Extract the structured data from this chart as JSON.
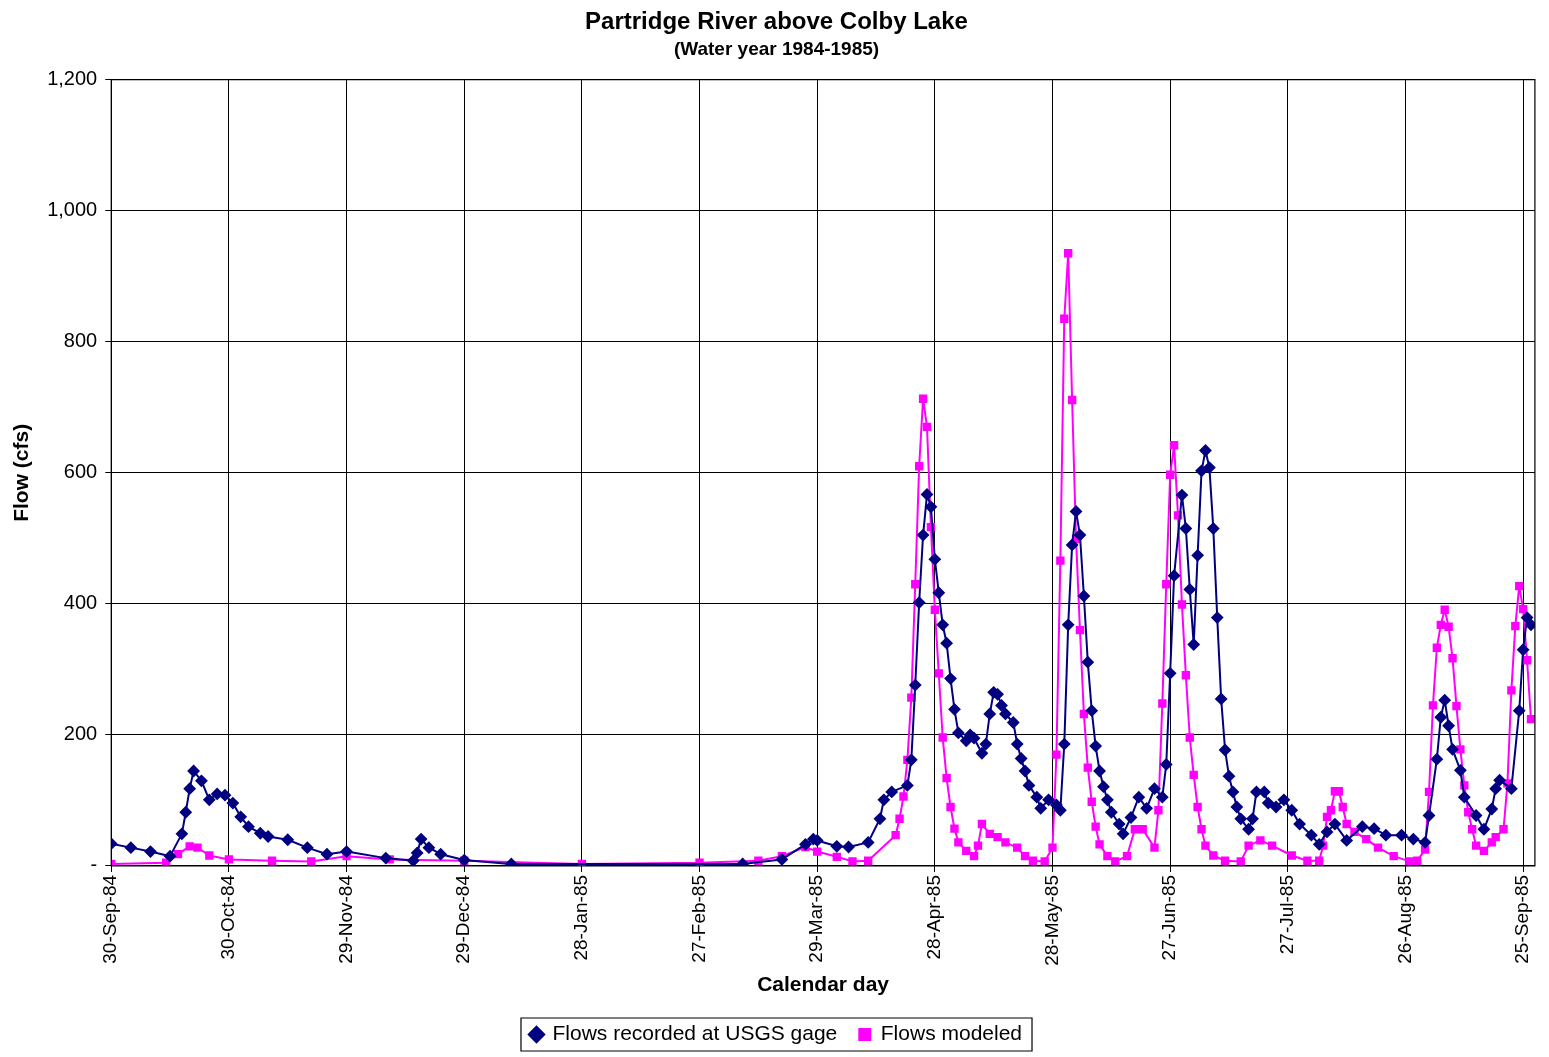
{
  "chart_data": {
    "type": "line",
    "title": "Partridge River above Colby Lake",
    "subtitle": "(Water year 1984-1985)",
    "xlabel": "Calendar day",
    "ylabel": "Flow (cfs)",
    "xlim": [
      "1984-09-30",
      "1985-09-28"
    ],
    "xticks": [
      {
        "value": "1984-09-30",
        "label": "30-Sep-84"
      },
      {
        "value": "1984-10-30",
        "label": "30-Oct-84"
      },
      {
        "value": "1984-11-29",
        "label": "29-Nov-84"
      },
      {
        "value": "1984-12-29",
        "label": "29-Dec-84"
      },
      {
        "value": "1985-01-28",
        "label": "28-Jan-85"
      },
      {
        "value": "1985-02-27",
        "label": "27-Feb-85"
      },
      {
        "value": "1985-03-29",
        "label": "29-Mar-85"
      },
      {
        "value": "1985-04-28",
        "label": "28-Apr-85"
      },
      {
        "value": "1985-05-28",
        "label": "28-May-85"
      },
      {
        "value": "1985-06-27",
        "label": "27-Jun-85"
      },
      {
        "value": "1985-07-27",
        "label": "27-Jul-85"
      },
      {
        "value": "1985-08-26",
        "label": "26-Aug-85"
      },
      {
        "value": "1985-09-25",
        "label": "25-Sep-85"
      }
    ],
    "ylim": [
      0,
      1200
    ],
    "yticks": [
      {
        "value": 0,
        "label": "-"
      },
      200,
      400,
      600,
      800,
      {
        "value": 1000,
        "label": "1,000"
      },
      {
        "value": 1200,
        "label": "1,200"
      }
    ],
    "grid": true,
    "legend": "bottom",
    "line_style": "solid",
    "series": [
      {
        "name": "Flows recorded at USGS gage",
        "color": "#000080",
        "marker": "diamond",
        "x": [
          "1984-09-30",
          "1984-10-05",
          "1984-10-10",
          "1984-10-15",
          "1984-10-18",
          "1984-10-19",
          "1984-10-20",
          "1984-10-21",
          "1984-10-23",
          "1984-10-25",
          "1984-10-27",
          "1984-10-29",
          "1984-10-31",
          "1984-11-02",
          "1984-11-04",
          "1984-11-07",
          "1984-11-09",
          "1984-11-14",
          "1984-11-19",
          "1984-11-24",
          "1984-11-29",
          "1984-12-09",
          "1984-12-16",
          "1984-12-17",
          "1984-12-18",
          "1984-12-20",
          "1984-12-23",
          "1984-12-29",
          "1985-01-10",
          "1985-03-10",
          "1985-03-20",
          "1985-03-26",
          "1985-03-28",
          "1985-03-29",
          "1985-04-03",
          "1985-04-06",
          "1985-04-11",
          "1985-04-14",
          "1985-04-15",
          "1985-04-17",
          "1985-04-21",
          "1985-04-22",
          "1985-04-23",
          "1985-04-24",
          "1985-04-25",
          "1985-04-26",
          "1985-04-27",
          "1985-04-28",
          "1985-04-29",
          "1985-04-30",
          "1985-05-01",
          "1985-05-02",
          "1985-05-03",
          "1985-05-04",
          "1985-05-06",
          "1985-05-07",
          "1985-05-08",
          "1985-05-10",
          "1985-05-11",
          "1985-05-12",
          "1985-05-13",
          "1985-05-14",
          "1985-05-15",
          "1985-05-16",
          "1985-05-18",
          "1985-05-19",
          "1985-05-20",
          "1985-05-21",
          "1985-05-22",
          "1985-05-24",
          "1985-05-25",
          "1985-05-27",
          "1985-05-29",
          "1985-05-30",
          "1985-05-31",
          "1985-06-01",
          "1985-06-02",
          "1985-06-03",
          "1985-06-04",
          "1985-06-05",
          "1985-06-06",
          "1985-06-07",
          "1985-06-08",
          "1985-06-09",
          "1985-06-10",
          "1985-06-11",
          "1985-06-12",
          "1985-06-14",
          "1985-06-15",
          "1985-06-17",
          "1985-06-19",
          "1985-06-21",
          "1985-06-23",
          "1985-06-25",
          "1985-06-26",
          "1985-06-27",
          "1985-06-28",
          "1985-06-30",
          "1985-07-01",
          "1985-07-02",
          "1985-07-03",
          "1985-07-04",
          "1985-07-05",
          "1985-07-06",
          "1985-07-07",
          "1985-07-08",
          "1985-07-09",
          "1985-07-10",
          "1985-07-11",
          "1985-07-12",
          "1985-07-13",
          "1985-07-14",
          "1985-07-15",
          "1985-07-17",
          "1985-07-18",
          "1985-07-19",
          "1985-07-21",
          "1985-07-22",
          "1985-07-24",
          "1985-07-26",
          "1985-07-28",
          "1985-07-30",
          "1985-08-02",
          "1985-08-04",
          "1985-08-06",
          "1985-08-08",
          "1985-08-11",
          "1985-08-15",
          "1985-08-18",
          "1985-08-21",
          "1985-08-25",
          "1985-08-28",
          "1985-08-31",
          "1985-09-01",
          "1985-09-03",
          "1985-09-04",
          "1985-09-05",
          "1985-09-06",
          "1985-09-07",
          "1985-09-09",
          "1985-09-10",
          "1985-09-13",
          "1985-09-15",
          "1985-09-17",
          "1985-09-18",
          "1985-09-19",
          "1985-09-22",
          "1985-09-24",
          "1985-09-25",
          "1985-09-26",
          "1985-09-27"
        ],
        "values": [
          34,
          28,
          22,
          15,
          49,
          82,
          118,
          145,
          130,
          101,
          110,
          108,
          96,
          75,
          60,
          50,
          45,
          40,
          28,
          18,
          22,
          12,
          8,
          20,
          41,
          28,
          18,
          9,
          3,
          3,
          10,
          33,
          41,
          39,
          30,
          29,
          36,
          72,
          101,
          113,
          123,
          162,
          276,
          402,
          505,
          567,
          548,
          468,
          417,
          368,
          340,
          286,
          239,
          203,
          191,
          200,
          195,
          172,
          186,
          232,
          265,
          262,
          245,
          232,
          219,
          186,
          164,
          145,
          123,
          105,
          88,
          101,
          93,
          85,
          186,
          368,
          490,
          541,
          505,
          412,
          311,
          237,
          183,
          145,
          121,
          101,
          82,
          64,
          49,
          74,
          105,
          88,
          118,
          105,
          155,
          294,
          443,
          566,
          515,
          422,
          338,
          474,
          603,
          634,
          608,
          515,
          379,
          255,
          177,
          137,
          113,
          90,
          72,
          56,
          72,
          113,
          113,
          96,
          90,
          101,
          85,
          64,
          47,
          33,
          52,
          64,
          39,
          60,
          57,
          47,
          47,
          41,
          36,
          77,
          163,
          227,
          253,
          214,
          178,
          146,
          105,
          77,
          56,
          87,
          118,
          131,
          118,
          237,
          330,
          379,
          368
        ]
      },
      {
        "name": "Flows modeled",
        "color": "#ff00ff",
        "marker": "square",
        "x": [
          "1984-09-30",
          "1984-10-14",
          "1984-10-17",
          "1984-10-20",
          "1984-10-22",
          "1984-10-25",
          "1984-10-30",
          "1984-11-10",
          "1984-11-20",
          "1984-11-29",
          "1984-12-10",
          "1984-12-29",
          "1985-01-28",
          "1985-02-27",
          "1985-03-14",
          "1985-03-20",
          "1985-03-26",
          "1985-03-29",
          "1985-04-03",
          "1985-04-07",
          "1985-04-11",
          "1985-04-18",
          "1985-04-19",
          "1985-04-20",
          "1985-04-21",
          "1985-04-22",
          "1985-04-23",
          "1985-04-24",
          "1985-04-25",
          "1985-04-26",
          "1985-04-27",
          "1985-04-28",
          "1985-04-29",
          "1985-04-30",
          "1985-05-01",
          "1985-05-02",
          "1985-05-03",
          "1985-05-04",
          "1985-05-06",
          "1985-05-08",
          "1985-05-09",
          "1985-05-10",
          "1985-05-12",
          "1985-05-14",
          "1985-05-16",
          "1985-05-19",
          "1985-05-21",
          "1985-05-23",
          "1985-05-26",
          "1985-05-28",
          "1985-05-29",
          "1985-05-30",
          "1985-05-31",
          "1985-06-01",
          "1985-06-02",
          "1985-06-03",
          "1985-06-04",
          "1985-06-05",
          "1985-06-06",
          "1985-06-07",
          "1985-06-08",
          "1985-06-09",
          "1985-06-11",
          "1985-06-13",
          "1985-06-16",
          "1985-06-18",
          "1985-06-20",
          "1985-06-23",
          "1985-06-24",
          "1985-06-25",
          "1985-06-26",
          "1985-06-27",
          "1985-06-28",
          "1985-06-29",
          "1985-06-30",
          "1985-07-01",
          "1985-07-02",
          "1985-07-03",
          "1985-07-04",
          "1985-07-05",
          "1985-07-06",
          "1985-07-08",
          "1985-07-11",
          "1985-07-15",
          "1985-07-17",
          "1985-07-20",
          "1985-07-23",
          "1985-07-28",
          "1985-08-01",
          "1985-08-04",
          "1985-08-05",
          "1985-08-06",
          "1985-08-07",
          "1985-08-08",
          "1985-08-09",
          "1985-08-10",
          "1985-08-11",
          "1985-08-13",
          "1985-08-16",
          "1985-08-19",
          "1985-08-23",
          "1985-08-27",
          "1985-08-29",
          "1985-08-31",
          "1985-09-01",
          "1985-09-02",
          "1985-09-03",
          "1985-09-04",
          "1985-09-05",
          "1985-09-06",
          "1985-09-07",
          "1985-09-08",
          "1985-09-09",
          "1985-09-10",
          "1985-09-11",
          "1985-09-12",
          "1985-09-13",
          "1985-09-15",
          "1985-09-17",
          "1985-09-18",
          "1985-09-20",
          "1985-09-21",
          "1985-09-22",
          "1985-09-23",
          "1985-09-24",
          "1985-09-25",
          "1985-09-26",
          "1985-09-27"
        ],
        "values": [
          3,
          5,
          18,
          30,
          28,
          16,
          10,
          8,
          7,
          15,
          10,
          8,
          3,
          5,
          8,
          15,
          29,
          22,
          14,
          7,
          8,
          47,
          72,
          106,
          162,
          257,
          430,
          610,
          713,
          670,
          517,
          391,
          294,
          196,
          134,
          90,
          57,
          36,
          23,
          15,
          31,
          64,
          49,
          44,
          36,
          28,
          15,
          8,
          7,
          28,
          170,
          466,
          835,
          935,
          711,
          499,
          360,
          232,
          150,
          98,
          60,
          33,
          15,
          7,
          15,
          56,
          56,
          28,
          85,
          248,
          430,
          597,
          642,
          535,
          399,
          291,
          196,
          139,
          90,
          56,
          31,
          16,
          8,
          7,
          31,
          39,
          31,
          16,
          8,
          8,
          31,
          75,
          85,
          114,
          114,
          90,
          64,
          52,
          41,
          28,
          15,
          7,
          8,
          25,
          113,
          245,
          333,
          368,
          391,
          365,
          317,
          244,
          178,
          123,
          82,
          56,
          31,
          23,
          36,
          44,
          56,
          126,
          268,
          366,
          427,
          392,
          314,
          224
        ]
      }
    ]
  }
}
